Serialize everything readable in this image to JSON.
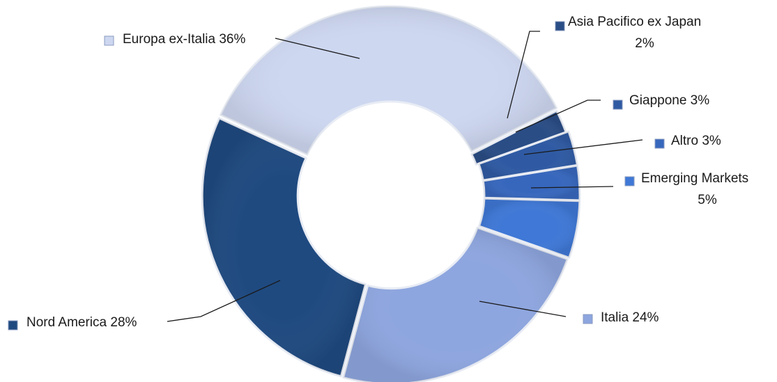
{
  "chart_data": {
    "type": "pie",
    "donut": true,
    "title": "",
    "slices": [
      {
        "name": "Asia Pacifico ex Japan",
        "value": 2,
        "label_lines": [
          "Asia Pacifico ex Japan",
          "2%"
        ],
        "color": "#2a4d86"
      },
      {
        "name": "Giappone",
        "value": 3,
        "label_lines": [
          "Giappone 3%"
        ],
        "color": "#2f5aa3"
      },
      {
        "name": "Altro",
        "value": 3,
        "label_lines": [
          "Altro 3%"
        ],
        "color": "#3767bd"
      },
      {
        "name": "Emerging Markets",
        "value": 5,
        "label_lines": [
          "Emerging Markets",
          "5%"
        ],
        "color": "#3f78d6"
      },
      {
        "name": "Italia",
        "value": 24,
        "label_lines": [
          "Italia 24%"
        ],
        "color": "#8ea6df"
      },
      {
        "name": "Nord America",
        "value": 28,
        "label_lines": [
          "Nord America 28%"
        ],
        "color": "#1f4a80"
      },
      {
        "name": "Europa ex-Italia",
        "value": 36,
        "label_lines": [
          "Europa ex-Italia 36%"
        ],
        "color": "#cdd7f0"
      }
    ],
    "legend": "inline-labels"
  }
}
